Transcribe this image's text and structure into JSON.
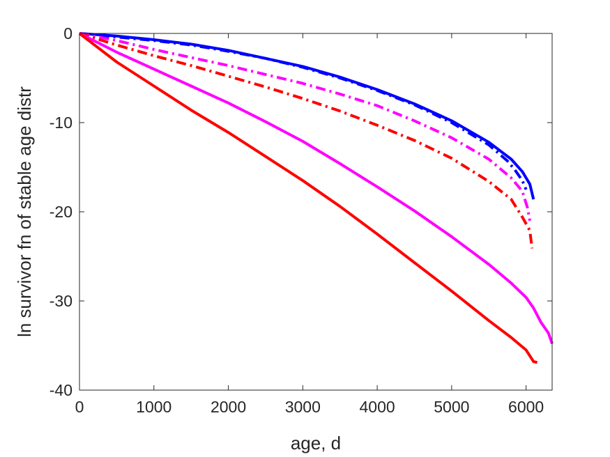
{
  "chart_data": {
    "type": "line",
    "title": "",
    "xlabel": "age, d",
    "ylabel": "ln survivor fn of stable age distr",
    "xlim": [
      0,
      6350
    ],
    "ylim": [
      -40,
      0
    ],
    "xticks": [
      0,
      1000,
      2000,
      3000,
      4000,
      5000,
      6000
    ],
    "yticks": [
      0,
      -10,
      -20,
      -30,
      -40
    ],
    "xtick_labels": [
      "0",
      "1000",
      "2000",
      "3000",
      "4000",
      "5000",
      "6000"
    ],
    "ytick_labels": [
      "0",
      "-10",
      "-20",
      "-30",
      "-40"
    ],
    "grid": false,
    "box": true,
    "series": [
      {
        "color": "#0000ff",
        "style": "solid",
        "x": [
          0,
          500,
          1000,
          1500,
          2000,
          2500,
          3000,
          3500,
          4000,
          4500,
          5000,
          5500,
          5800,
          5950,
          6050,
          6100
        ],
        "y": [
          0,
          -0.3,
          -0.7,
          -1.2,
          -1.9,
          -2.8,
          -3.7,
          -4.9,
          -6.3,
          -7.9,
          -9.8,
          -12.2,
          -14.1,
          -15.5,
          -16.9,
          -18.6
        ]
      },
      {
        "color": "#0000ff",
        "style": "dashdot",
        "x": [
          0,
          500,
          1000,
          1500,
          2000,
          2500,
          3000,
          3500,
          4000,
          4500,
          5000,
          5500,
          5750,
          5850,
          5950,
          6000
        ],
        "y": [
          0,
          -0.4,
          -0.8,
          -1.3,
          -2.0,
          -2.8,
          -3.8,
          -5.0,
          -6.4,
          -8.0,
          -10.0,
          -12.5,
          -14.3,
          -15.3,
          -16.5,
          -17.5
        ]
      },
      {
        "color": "#ff00ff",
        "style": "dashdot",
        "x": [
          0,
          500,
          1000,
          1500,
          2000,
          2500,
          3000,
          3500,
          4000,
          4500,
          5000,
          5500,
          5800,
          5950,
          6020,
          6050
        ],
        "y": [
          0,
          -0.8,
          -1.8,
          -2.7,
          -3.6,
          -4.6,
          -5.6,
          -6.8,
          -8.1,
          -9.8,
          -11.7,
          -14.1,
          -16.2,
          -17.7,
          -19.6,
          -21.0
        ]
      },
      {
        "color": "#ff0000",
        "style": "dashdot",
        "x": [
          0,
          500,
          1000,
          1500,
          2000,
          2500,
          3000,
          3500,
          4000,
          4500,
          5000,
          5500,
          5800,
          5950,
          6050,
          6080
        ],
        "y": [
          0,
          -1.3,
          -2.5,
          -3.6,
          -4.8,
          -6.0,
          -7.3,
          -8.7,
          -10.3,
          -12.0,
          -14.0,
          -16.6,
          -18.6,
          -20.6,
          -22.1,
          -24.1
        ]
      },
      {
        "color": "#ff00ff",
        "style": "solid",
        "x": [
          0,
          500,
          1000,
          1500,
          2000,
          2500,
          3000,
          3500,
          4000,
          4500,
          5000,
          5500,
          5800,
          6000,
          6100,
          6200,
          6300,
          6350
        ],
        "y": [
          0,
          -2.1,
          -4.0,
          -5.9,
          -7.8,
          -9.9,
          -12.1,
          -14.6,
          -17.2,
          -19.9,
          -22.8,
          -25.9,
          -28.0,
          -29.6,
          -30.8,
          -32.4,
          -33.6,
          -34.8
        ]
      },
      {
        "color": "#ff0000",
        "style": "solid",
        "x": [
          0,
          500,
          1000,
          1500,
          2000,
          2500,
          3000,
          3500,
          4000,
          4500,
          5000,
          5500,
          5800,
          6000,
          6100,
          6150
        ],
        "y": [
          0,
          -3.2,
          -5.9,
          -8.6,
          -11.1,
          -13.8,
          -16.5,
          -19.4,
          -22.5,
          -25.7,
          -28.9,
          -32.2,
          -34.1,
          -35.5,
          -36.8,
          -36.9
        ]
      }
    ]
  }
}
